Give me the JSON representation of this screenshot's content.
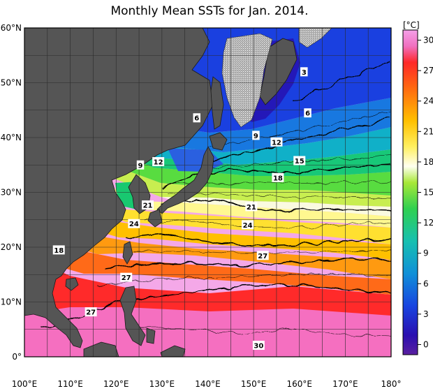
{
  "title": "Monthly Mean SSTs for Jan. 2014.",
  "colorbar": {
    "unit": "[°C]",
    "ticks": [
      30,
      27,
      24,
      21,
      18,
      15,
      12,
      9,
      6,
      3,
      0
    ],
    "range": [
      -1,
      31
    ]
  },
  "axes": {
    "lat_labels": [
      "60°N",
      "50°N",
      "40°N",
      "30°N",
      "20°N",
      "10°N",
      "0°"
    ],
    "lat_values": [
      60,
      50,
      40,
      30,
      20,
      10,
      0
    ],
    "lon_labels": [
      "100°E",
      "110°E",
      "120°E",
      "130°E",
      "140°E",
      "150°E",
      "160°E",
      "170°E",
      "180°"
    ],
    "lon_values": [
      100,
      110,
      120,
      130,
      140,
      150,
      160,
      170,
      180
    ],
    "lon_range": [
      100,
      180
    ],
    "lat_range": [
      0,
      60
    ]
  },
  "contour_labels": [
    {
      "text": "3",
      "lon": 161,
      "lat": 52
    },
    {
      "text": "6",
      "lon": 137.6,
      "lat": 43.6
    },
    {
      "text": "6",
      "lon": 161.8,
      "lat": 44.5
    },
    {
      "text": "9",
      "lon": 150.5,
      "lat": 40.4
    },
    {
      "text": "12",
      "lon": 155,
      "lat": 39.2
    },
    {
      "text": "15",
      "lon": 160,
      "lat": 35.8
    },
    {
      "text": "18",
      "lon": 155.3,
      "lat": 32.7
    },
    {
      "text": "9",
      "lon": 125.3,
      "lat": 35
    },
    {
      "text": "12",
      "lon": 129.2,
      "lat": 35.6
    },
    {
      "text": "21",
      "lon": 126.9,
      "lat": 27.7
    },
    {
      "text": "21",
      "lon": 149.5,
      "lat": 27.4
    },
    {
      "text": "24",
      "lon": 123.9,
      "lat": 24.3
    },
    {
      "text": "24",
      "lon": 148.7,
      "lat": 24.1
    },
    {
      "text": "27",
      "lon": 152,
      "lat": 18.5
    },
    {
      "text": "27",
      "lon": 122.2,
      "lat": 14.5
    },
    {
      "text": "27",
      "lon": 114.5,
      "lat": 8.2
    },
    {
      "text": "18",
      "lon": 107.5,
      "lat": 19.5
    },
    {
      "text": "30",
      "lon": 151.1,
      "lat": 2.1
    }
  ],
  "colors": {
    "land": "#555555",
    "frame": "#000000",
    "grid": "#2a2a2a"
  }
}
